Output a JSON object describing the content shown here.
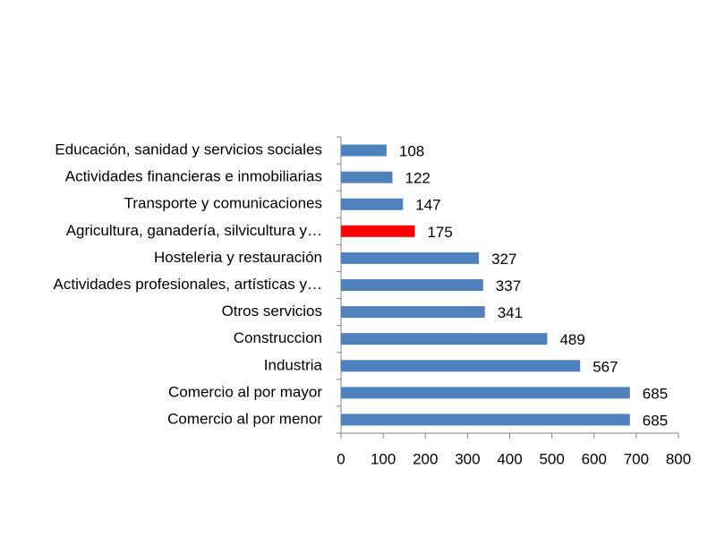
{
  "chart_data": {
    "type": "hbar",
    "categories": [
      "Educación, sanidad y servicios sociales",
      "Actividades financieras e inmobiliarias",
      "Transporte y comunicaciones",
      "Agricultura, ganadería, silvicultura y…",
      "Hosteleria y restauración",
      "Actividades profesionales, artísticas y…",
      "Otros servicios",
      "Construccion",
      "Industria",
      "Comercio al por mayor",
      "Comercio al por menor"
    ],
    "values": [
      108,
      122,
      147,
      175,
      327,
      337,
      341,
      489,
      567,
      685,
      685
    ],
    "colors": [
      "#4f81bd",
      "#4f81bd",
      "#4f81bd",
      "#ff0000",
      "#4f81bd",
      "#4f81bd",
      "#4f81bd",
      "#4f81bd",
      "#4f81bd",
      "#4f81bd",
      "#4f81bd"
    ],
    "xlim": [
      0,
      800
    ],
    "xticks": [
      0,
      100,
      200,
      300,
      400,
      500,
      600,
      700,
      800
    ],
    "grid": false
  }
}
